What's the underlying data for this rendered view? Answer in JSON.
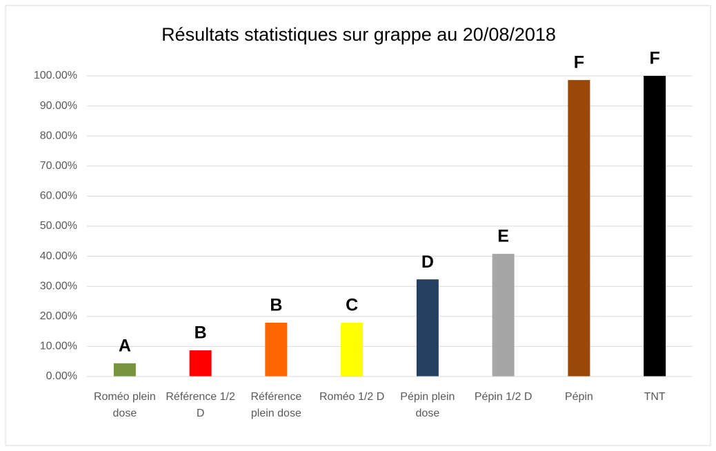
{
  "chart_data": {
    "type": "bar",
    "title": "Résultats statistiques sur grappe au 20/08/2018",
    "categories": [
      "Roméo plein dose",
      "Référence 1/2 D",
      "Référence plein dose",
      "Roméo 1/2 D",
      "Pépin plein dose",
      "Pépin 1/2 D",
      "Pépin",
      "TNT"
    ],
    "values": [
      4.4,
      8.7,
      17.9,
      17.9,
      32.3,
      40.8,
      98.6,
      100
    ],
    "colors": [
      "#77933c",
      "#ff0000",
      "#ff6600",
      "#ffff00",
      "#243f60",
      "#a6a6a6",
      "#984807",
      "#000000"
    ],
    "annotations": [
      "A",
      "B",
      "B",
      "C",
      "D",
      "E",
      "F",
      "F"
    ],
    "ylim": [
      0,
      100
    ],
    "yticks": [
      {
        "value": 0,
        "label": "0.00%"
      },
      {
        "value": 10,
        "label": "10.00%"
      },
      {
        "value": 20,
        "label": "20.00%"
      },
      {
        "value": 30,
        "label": "30.00%"
      },
      {
        "value": 40,
        "label": "40.00%"
      },
      {
        "value": 50,
        "label": "50.00%"
      },
      {
        "value": 60,
        "label": "60.00%"
      },
      {
        "value": 70,
        "label": "70.00%"
      },
      {
        "value": 80,
        "label": "80.00%"
      },
      {
        "value": 90,
        "label": "90.00%"
      },
      {
        "value": 100,
        "label": "100.00%"
      }
    ],
    "grid": true
  }
}
